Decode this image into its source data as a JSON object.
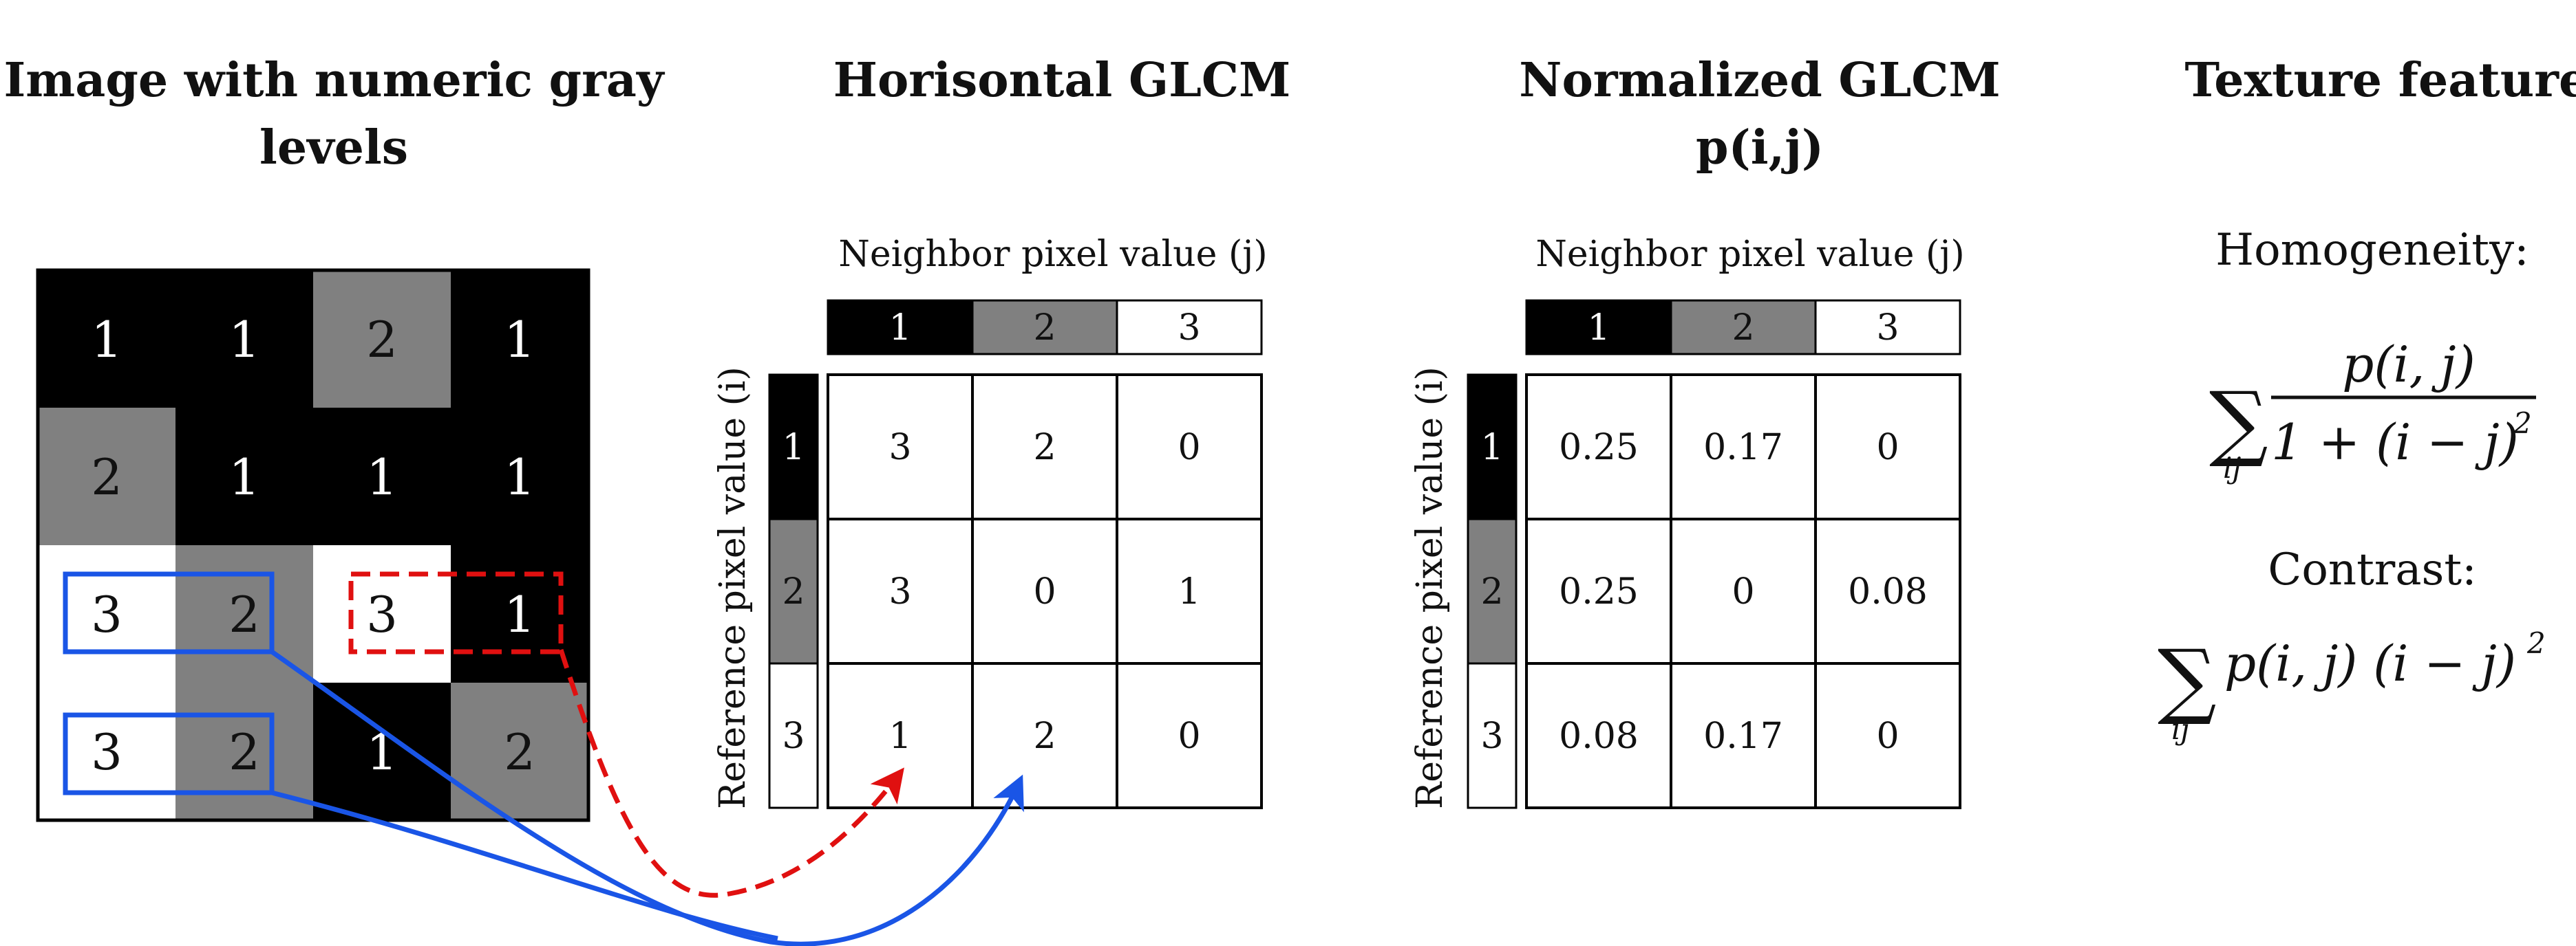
{
  "titles": {
    "image": [
      "Image with numeric gray",
      "levels"
    ],
    "glcm": "Horisontal GLCM",
    "norm": [
      "Normalized GLCM",
      "p(i,j)"
    ],
    "features": "Texture features"
  },
  "colors": {
    "level1": "#000000",
    "level2": "#808080",
    "level3": "#ffffff",
    "dashed_arrow": "#e01010",
    "solid_arrow": "#1a55e6"
  },
  "image_grid": [
    [
      1,
      1,
      2,
      1
    ],
    [
      2,
      1,
      1,
      1
    ],
    [
      3,
      2,
      3,
      1
    ],
    [
      3,
      2,
      1,
      2
    ]
  ],
  "axis_labels": {
    "neighbor": "Neighbor pixel value (j)",
    "reference": "Reference pixel value (i)"
  },
  "header_values": [
    "1",
    "2",
    "3"
  ],
  "glcm": [
    [
      "3",
      "2",
      "0"
    ],
    [
      "3",
      "0",
      "1"
    ],
    [
      "1",
      "2",
      "0"
    ]
  ],
  "normalized": [
    [
      "0.25",
      "0.17",
      "0"
    ],
    [
      "0.25",
      "0",
      "0.08"
    ],
    [
      "0.08",
      "0.17",
      "0"
    ]
  ],
  "features": {
    "homogeneity_label": "Homogeneity:",
    "contrast_label": "Contrast:",
    "hom_numerator": "p(i, j)",
    "hom_denominator": "1 + (i − j)",
    "sum_index": "ij",
    "contrast_expr": "p(i, j) (i − j)",
    "exponent": "2"
  }
}
